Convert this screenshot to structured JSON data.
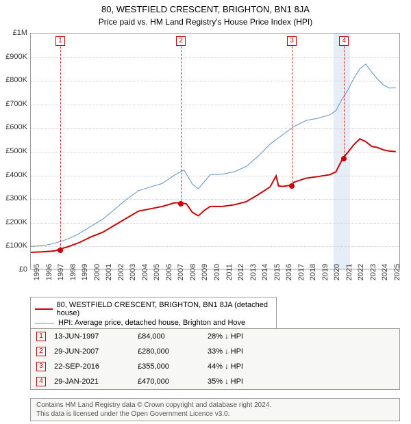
{
  "title": "80, WESTFIELD CRESCENT, BRIGHTON, BN1 8JA",
  "subtitle": "Price paid vs. HM Land Registry's House Price Index (HPI)",
  "chart": {
    "type": "line",
    "background_color": "#ffffff",
    "grid_color": "#d0d0d0",
    "x_min": 1995,
    "x_max": 2025.8,
    "x_ticks": [
      1995,
      1996,
      1997,
      1998,
      1999,
      2000,
      2001,
      2002,
      2003,
      2004,
      2005,
      2006,
      2007,
      2008,
      2009,
      2010,
      2011,
      2012,
      2013,
      2014,
      2015,
      2016,
      2017,
      2018,
      2019,
      2020,
      2021,
      2022,
      2023,
      2024,
      2025
    ],
    "y_min": 0,
    "y_max": 1000000,
    "y_ticks": [
      0,
      100000,
      200000,
      300000,
      400000,
      500000,
      600000,
      700000,
      800000,
      900000,
      1000000
    ],
    "y_tick_labels": [
      "£0",
      "£100K",
      "£200K",
      "£300K",
      "£400K",
      "£500K",
      "£600K",
      "£700K",
      "£800K",
      "£900K",
      "£1M"
    ],
    "highlight_band": {
      "x_start": 2020.2,
      "x_end": 2021.6,
      "color": "#dce6f2"
    },
    "series": [
      {
        "name": "property",
        "label": "80, WESTFIELD CRESCENT, BRIGHTON, BN1 8JA (detached house)",
        "color": "#cc0000",
        "line_width": 2,
        "points": [
          [
            1995.0,
            70000
          ],
          [
            1996.0,
            72000
          ],
          [
            1997.0,
            76000
          ],
          [
            1997.45,
            84000
          ],
          [
            1998.0,
            92000
          ],
          [
            1999.0,
            110000
          ],
          [
            2000.0,
            135000
          ],
          [
            2001.0,
            155000
          ],
          [
            2002.0,
            185000
          ],
          [
            2003.0,
            215000
          ],
          [
            2004.0,
            245000
          ],
          [
            2005.0,
            255000
          ],
          [
            2006.0,
            265000
          ],
          [
            2007.0,
            280000
          ],
          [
            2007.5,
            280000
          ],
          [
            2008.0,
            276000
          ],
          [
            2008.5,
            240000
          ],
          [
            2009.0,
            225000
          ],
          [
            2009.5,
            248000
          ],
          [
            2010.0,
            265000
          ],
          [
            2011.0,
            265000
          ],
          [
            2012.0,
            272000
          ],
          [
            2013.0,
            285000
          ],
          [
            2014.0,
            315000
          ],
          [
            2015.0,
            348000
          ],
          [
            2015.5,
            395000
          ],
          [
            2015.7,
            352000
          ],
          [
            2016.0,
            350000
          ],
          [
            2016.73,
            355000
          ],
          [
            2017.0,
            368000
          ],
          [
            2018.0,
            385000
          ],
          [
            2019.0,
            392000
          ],
          [
            2020.0,
            400000
          ],
          [
            2020.5,
            412000
          ],
          [
            2021.08,
            470000
          ],
          [
            2021.5,
            495000
          ],
          [
            2022.0,
            528000
          ],
          [
            2022.5,
            552000
          ],
          [
            2023.0,
            540000
          ],
          [
            2023.5,
            520000
          ],
          [
            2024.0,
            515000
          ],
          [
            2024.5,
            505000
          ],
          [
            2025.0,
            500000
          ],
          [
            2025.5,
            498000
          ]
        ]
      },
      {
        "name": "hpi",
        "label": "HPI: Average price, detached house, Brighton and Hove",
        "color": "#5b8fc7",
        "line_width": 1,
        "points": [
          [
            1995.0,
            95000
          ],
          [
            1996.0,
            98000
          ],
          [
            1997.0,
            108000
          ],
          [
            1998.0,
            125000
          ],
          [
            1999.0,
            148000
          ],
          [
            2000.0,
            180000
          ],
          [
            2001.0,
            210000
          ],
          [
            2002.0,
            252000
          ],
          [
            2003.0,
            295000
          ],
          [
            2004.0,
            332000
          ],
          [
            2005.0,
            348000
          ],
          [
            2006.0,
            363000
          ],
          [
            2007.0,
            398000
          ],
          [
            2007.8,
            420000
          ],
          [
            2008.5,
            360000
          ],
          [
            2009.0,
            340000
          ],
          [
            2009.5,
            370000
          ],
          [
            2010.0,
            400000
          ],
          [
            2011.0,
            402000
          ],
          [
            2012.0,
            412000
          ],
          [
            2013.0,
            435000
          ],
          [
            2014.0,
            478000
          ],
          [
            2015.0,
            530000
          ],
          [
            2016.0,
            568000
          ],
          [
            2017.0,
            605000
          ],
          [
            2018.0,
            630000
          ],
          [
            2019.0,
            640000
          ],
          [
            2020.0,
            655000
          ],
          [
            2020.5,
            672000
          ],
          [
            2021.0,
            720000
          ],
          [
            2021.5,
            760000
          ],
          [
            2022.0,
            810000
          ],
          [
            2022.5,
            850000
          ],
          [
            2023.0,
            870000
          ],
          [
            2023.5,
            835000
          ],
          [
            2024.0,
            805000
          ],
          [
            2024.5,
            780000
          ],
          [
            2025.0,
            768000
          ],
          [
            2025.5,
            770000
          ]
        ]
      }
    ],
    "markers": [
      {
        "n": "1",
        "x": 1997.45,
        "y": 84000
      },
      {
        "n": "2",
        "x": 2007.5,
        "y": 280000
      },
      {
        "n": "3",
        "x": 2016.73,
        "y": 355000
      },
      {
        "n": "4",
        "x": 2021.08,
        "y": 470000
      }
    ]
  },
  "legend": {
    "items": [
      {
        "color": "#cc0000",
        "width": 2,
        "label": "80, WESTFIELD CRESCENT, BRIGHTON, BN1 8JA (detached house)"
      },
      {
        "color": "#5b8fc7",
        "width": 1,
        "label": "HPI: Average price, detached house, Brighton and Hove"
      }
    ]
  },
  "sales": [
    {
      "n": "1",
      "date": "13-JUN-1997",
      "price": "£84,000",
      "diff": "28%",
      "suffix": "HPI"
    },
    {
      "n": "2",
      "date": "29-JUN-2007",
      "price": "£280,000",
      "diff": "33%",
      "suffix": "HPI"
    },
    {
      "n": "3",
      "date": "22-SEP-2016",
      "price": "£355,000",
      "diff": "44%",
      "suffix": "HPI"
    },
    {
      "n": "4",
      "date": "29-JAN-2021",
      "price": "£470,000",
      "diff": "35%",
      "suffix": "HPI"
    }
  ],
  "footer_line1": "Contains HM Land Registry data © Crown copyright and database right 2024.",
  "footer_line2": "This data is licensed under the Open Government Licence v3.0."
}
